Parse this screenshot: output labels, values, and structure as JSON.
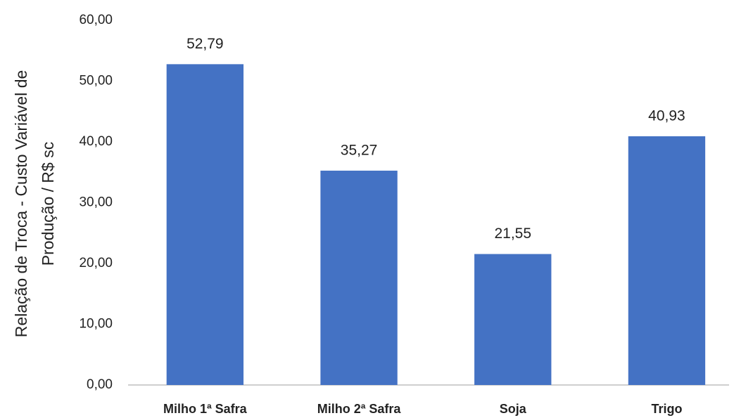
{
  "chart_data": {
    "type": "bar",
    "y_label": [
      "Relação de Troca - Custo Variável de",
      "Produção / R$ sc"
    ],
    "categories": [
      "Milho 1ª Safra",
      "Milho 2ª Safra",
      "Soja",
      "Trigo"
    ],
    "values": [
      52.79,
      35.27,
      21.55,
      40.93
    ],
    "value_labels": [
      "52,79",
      "35,27",
      "21,55",
      "40,93"
    ],
    "color": "#4472c4",
    "ylim": [
      0,
      60
    ],
    "yticks": [
      {
        "value": 0,
        "label": "0,00"
      },
      {
        "value": 10,
        "label": "10,00"
      },
      {
        "value": 20,
        "label": "20,00"
      },
      {
        "value": 30,
        "label": "30,00"
      },
      {
        "value": 40,
        "label": "40,00"
      },
      {
        "value": 50,
        "label": "50,00"
      },
      {
        "value": 60,
        "label": "60,00"
      }
    ],
    "grid": false
  }
}
